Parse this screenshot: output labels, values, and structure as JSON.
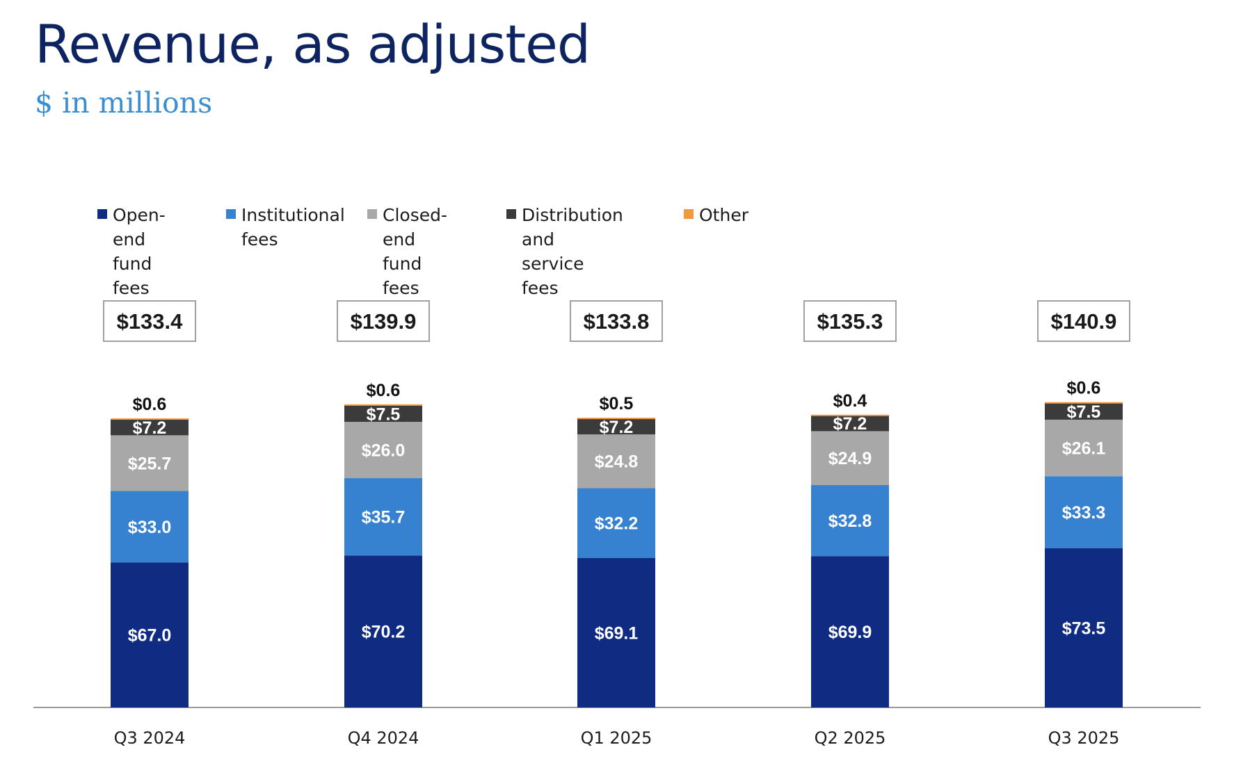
{
  "page": {
    "title": "Revenue, as adjusted",
    "subtitle": "$ in millions"
  },
  "colors": {
    "open_end": "#0f2b82",
    "institutional": "#3781d1",
    "closed_end": "#a8a8a8",
    "distribution": "#3b3b3b",
    "other": "#f0993f",
    "axis": "#9a9a9a"
  },
  "chart_data": {
    "type": "bar",
    "stacked": true,
    "categories": [
      "Q3 2024",
      "Q4 2024",
      "Q1 2025",
      "Q2 2025",
      "Q3 2025"
    ],
    "series": [
      {
        "name": "Open-end\nfund fees",
        "color_key": "open_end",
        "values": [
          67.0,
          70.2,
          69.1,
          69.9,
          73.5
        ],
        "labels": [
          "$67.0",
          "$70.2",
          "$69.1",
          "$69.9",
          "$73.5"
        ]
      },
      {
        "name": "Institutional\nfees",
        "color_key": "institutional",
        "values": [
          33.0,
          35.7,
          32.2,
          32.8,
          33.3
        ],
        "labels": [
          "$33.0",
          "$35.7",
          "$32.2",
          "$32.8",
          "$33.3"
        ]
      },
      {
        "name": "Closed-end\nfund fees",
        "color_key": "closed_end",
        "values": [
          25.7,
          26.0,
          24.8,
          24.9,
          26.1
        ],
        "labels": [
          "$25.7",
          "$26.0",
          "$24.8",
          "$24.9",
          "$26.1"
        ]
      },
      {
        "name": "Distribution and\nservice fees",
        "color_key": "distribution",
        "values": [
          7.2,
          7.5,
          7.2,
          7.2,
          7.5
        ],
        "labels": [
          "$7.2",
          "$7.5",
          "$7.2",
          "$7.2",
          "$7.5"
        ]
      },
      {
        "name": "Other",
        "color_key": "other",
        "values": [
          0.6,
          0.6,
          0.5,
          0.4,
          0.6
        ],
        "labels": [
          "$0.6",
          "$0.6",
          "$0.5",
          "$0.4",
          "$0.6"
        ]
      }
    ],
    "totals": [
      133.4,
      139.9,
      133.8,
      135.3,
      140.9
    ],
    "total_labels": [
      "$133.4",
      "$139.9",
      "$133.8",
      "$135.3",
      "$140.9"
    ],
    "title": "Revenue, as adjusted",
    "ylabel": "$ in millions",
    "xlabel": "",
    "ylim": [
      0,
      140.9
    ],
    "grid": false,
    "legend_position": "top-left"
  }
}
